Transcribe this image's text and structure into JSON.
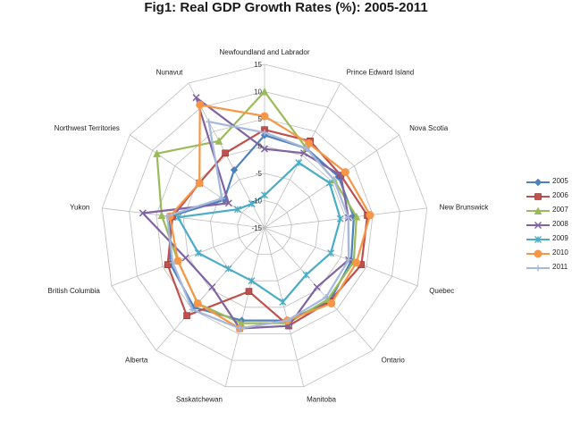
{
  "chart_data": {
    "type": "radar",
    "title": "Fig1: Real GDP Growth Rates (%): 2005-2011",
    "categories": [
      "Newfoundland and Labrador",
      "Prince Edward Island",
      "Nova Scotia",
      "New Brunswick",
      "Quebec",
      "Ontario",
      "Manitoba",
      "Saskatchewan",
      "Alberta",
      "British Columbia",
      "Yukon",
      "Northwest Territories",
      "Nunavut"
    ],
    "rlim": [
      -15,
      15
    ],
    "ticks": [
      -15,
      -10,
      -5,
      0,
      5,
      10,
      15
    ],
    "tick_labels": [
      "-15",
      "-10",
      "-5",
      "0",
      "5",
      "10",
      "15"
    ],
    "legend_position": "right",
    "series": [
      {
        "name": "2005",
        "color": "#4f81bd",
        "marker": "diamond",
        "values": [
          2.0,
          1.5,
          1.5,
          1.5,
          2.0,
          3.0,
          2.5,
          2.5,
          4.5,
          3.5,
          2.5,
          -6.0,
          -3.0
        ]
      },
      {
        "name": "2006",
        "color": "#c0504d",
        "marker": "square",
        "values": [
          3.0,
          3.0,
          2.0,
          4.0,
          4.0,
          3.0,
          3.5,
          -3.0,
          6.5,
          4.0,
          2.0,
          -0.5,
          0.5
        ]
      },
      {
        "name": "2007",
        "color": "#9bbb59",
        "marker": "triangle",
        "values": [
          10.0,
          1.5,
          0.5,
          2.0,
          2.5,
          2.5,
          3.0,
          3.0,
          3.5,
          2.0,
          4.0,
          9.0,
          3.0
        ]
      },
      {
        "name": "2008",
        "color": "#8064a2",
        "marker": "x",
        "values": [
          -0.5,
          0.5,
          2.0,
          0.5,
          1.5,
          -0.5,
          3.5,
          4.0,
          -0.5,
          0.5,
          7.5,
          -7.0,
          12.0
        ]
      },
      {
        "name": "2009",
        "color": "#4bacc6",
        "marker": "asterisk",
        "values": [
          -9.0,
          -1.5,
          -0.5,
          -1.0,
          -2.0,
          -3.5,
          -1.0,
          -5.0,
          -5.0,
          -2.0,
          1.0,
          -9.0,
          -10.0
        ]
      },
      {
        "name": "2010",
        "color": "#f79646",
        "marker": "circle",
        "values": [
          5.5,
          2.5,
          3.0,
          4.5,
          3.0,
          3.5,
          2.5,
          4.0,
          3.5,
          2.0,
          2.5,
          -0.5,
          10.5
        ]
      },
      {
        "name": "2011",
        "color": "#a5b8dd",
        "marker": "plus",
        "values": [
          2.5,
          1.5,
          0.5,
          0.5,
          1.5,
          2.0,
          2.5,
          4.0,
          5.0,
          3.0,
          3.0,
          -5.5,
          7.0
        ]
      }
    ]
  }
}
